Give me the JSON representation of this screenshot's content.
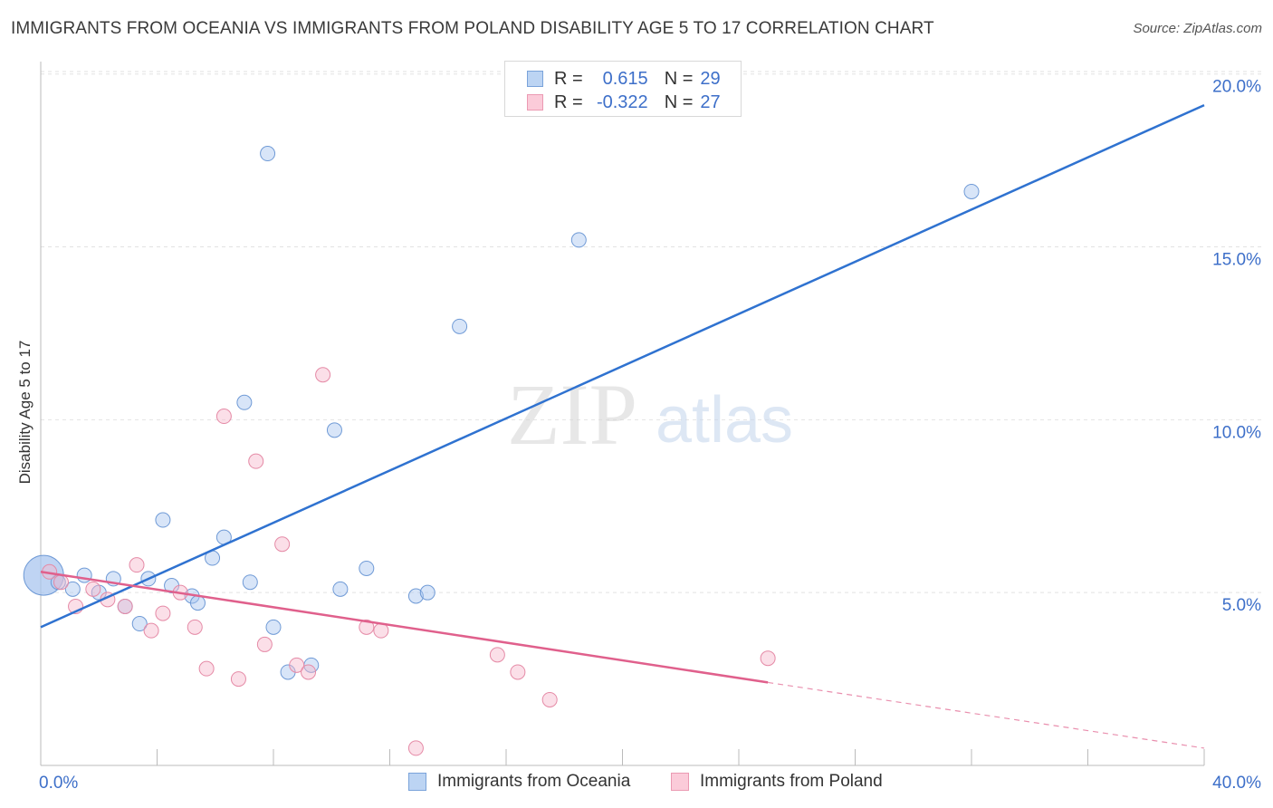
{
  "title": "IMMIGRANTS FROM OCEANIA VS IMMIGRANTS FROM POLAND DISABILITY AGE 5 TO 17 CORRELATION CHART",
  "source": "Source: ZipAtlas.com",
  "watermark": {
    "zip": "ZIP",
    "atlas": "atlas"
  },
  "stats_legend": {
    "r_label": "R =",
    "n_label": "N =",
    "rows": [
      {
        "r": "0.615",
        "n": "29"
      },
      {
        "r": "-0.322",
        "n": "27"
      }
    ]
  },
  "chart_data": {
    "type": "scatter",
    "title": "IMMIGRANTS FROM OCEANIA VS IMMIGRANTS FROM POLAND DISABILITY AGE 5 TO 17 CORRELATION CHART",
    "xlabel": "",
    "ylabel": "Disability Age 5 to 17",
    "xlim": [
      0,
      40
    ],
    "ylim": [
      0,
      20
    ],
    "x_tick_labels": [
      "0.0%",
      "40.0%"
    ],
    "y_ticks": [
      5,
      10,
      15,
      20
    ],
    "y_tick_labels": [
      "5.0%",
      "10.0%",
      "15.0%",
      "20.0%"
    ],
    "grid": true,
    "legend_position": "bottom",
    "series": [
      {
        "name": "Immigrants from Oceania",
        "color": "#a9c6ef",
        "stroke": "#6f9ad6",
        "line_color": "#2f72d0",
        "trend": {
          "x": [
            0,
            40
          ],
          "y": [
            4.0,
            19.1
          ]
        },
        "points": [
          {
            "x": 0.1,
            "y": 5.5,
            "big": true
          },
          {
            "x": 0.6,
            "y": 5.3
          },
          {
            "x": 1.1,
            "y": 5.1
          },
          {
            "x": 1.5,
            "y": 5.5
          },
          {
            "x": 2.0,
            "y": 5.0
          },
          {
            "x": 2.5,
            "y": 5.4
          },
          {
            "x": 2.9,
            "y": 4.6
          },
          {
            "x": 3.4,
            "y": 4.1
          },
          {
            "x": 3.7,
            "y": 5.4
          },
          {
            "x": 4.2,
            "y": 7.1
          },
          {
            "x": 4.5,
            "y": 5.2
          },
          {
            "x": 5.2,
            "y": 4.9
          },
          {
            "x": 5.4,
            "y": 4.7
          },
          {
            "x": 5.9,
            "y": 6.0
          },
          {
            "x": 6.3,
            "y": 6.6
          },
          {
            "x": 7.0,
            "y": 10.5
          },
          {
            "x": 7.2,
            "y": 5.3
          },
          {
            "x": 7.8,
            "y": 17.7
          },
          {
            "x": 8.0,
            "y": 4.0
          },
          {
            "x": 8.5,
            "y": 2.7
          },
          {
            "x": 9.3,
            "y": 2.9
          },
          {
            "x": 10.1,
            "y": 9.7
          },
          {
            "x": 10.3,
            "y": 5.1
          },
          {
            "x": 11.2,
            "y": 5.7
          },
          {
            "x": 12.9,
            "y": 4.9
          },
          {
            "x": 13.3,
            "y": 5.0
          },
          {
            "x": 14.4,
            "y": 12.7
          },
          {
            "x": 18.5,
            "y": 15.2
          },
          {
            "x": 32.0,
            "y": 16.6
          }
        ]
      },
      {
        "name": "Immigrants from Poland",
        "color": "#f6b8cb",
        "stroke": "#e58aa6",
        "line_color": "#e0608c",
        "trend": {
          "x": [
            0,
            25
          ],
          "y": [
            5.6,
            2.4
          ]
        },
        "trend_dashed": {
          "x": [
            25,
            40
          ],
          "y": [
            2.4,
            0.5
          ]
        },
        "points": [
          {
            "x": 0.3,
            "y": 5.6
          },
          {
            "x": 0.7,
            "y": 5.3
          },
          {
            "x": 1.2,
            "y": 4.6
          },
          {
            "x": 1.8,
            "y": 5.1
          },
          {
            "x": 2.3,
            "y": 4.8
          },
          {
            "x": 2.9,
            "y": 4.6
          },
          {
            "x": 3.3,
            "y": 5.8
          },
          {
            "x": 3.8,
            "y": 3.9
          },
          {
            "x": 4.2,
            "y": 4.4
          },
          {
            "x": 4.8,
            "y": 5.0
          },
          {
            "x": 5.3,
            "y": 4.0
          },
          {
            "x": 5.7,
            "y": 2.8
          },
          {
            "x": 6.3,
            "y": 10.1
          },
          {
            "x": 6.8,
            "y": 2.5
          },
          {
            "x": 7.4,
            "y": 8.8
          },
          {
            "x": 7.7,
            "y": 3.5
          },
          {
            "x": 8.3,
            "y": 6.4
          },
          {
            "x": 8.8,
            "y": 2.9
          },
          {
            "x": 9.2,
            "y": 2.7
          },
          {
            "x": 9.7,
            "y": 11.3
          },
          {
            "x": 11.2,
            "y": 4.0
          },
          {
            "x": 11.7,
            "y": 3.9
          },
          {
            "x": 12.9,
            "y": 0.5
          },
          {
            "x": 15.7,
            "y": 3.2
          },
          {
            "x": 16.4,
            "y": 2.7
          },
          {
            "x": 17.5,
            "y": 1.9
          },
          {
            "x": 25.0,
            "y": 3.1
          }
        ]
      }
    ]
  }
}
